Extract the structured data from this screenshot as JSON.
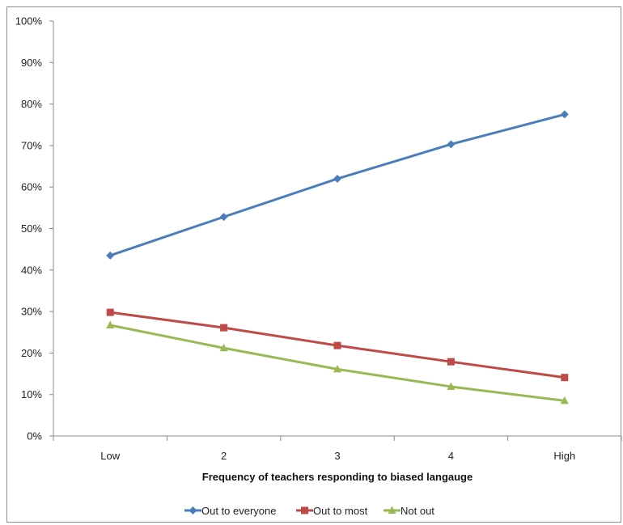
{
  "chart_data": {
    "type": "line",
    "title": "",
    "xlabel": "Frequency of teachers responding to biased langauge",
    "ylabel": "",
    "categories": [
      "Low",
      "2",
      "3",
      "4",
      "High"
    ],
    "ylim": [
      0,
      100
    ],
    "y_ticks": [
      "0%",
      "10%",
      "20%",
      "30%",
      "40%",
      "50%",
      "60%",
      "70%",
      "80%",
      "90%",
      "100%"
    ],
    "grid": false,
    "legend_position": "bottom",
    "series": [
      {
        "name": "Out to everyone",
        "values": [
          43.5,
          52.8,
          62.0,
          70.3,
          77.5
        ],
        "color": "#4a7ebb",
        "marker": "diamond"
      },
      {
        "name": "Out to most",
        "values": [
          29.8,
          26.1,
          21.8,
          17.9,
          14.1
        ],
        "color": "#be4b48",
        "marker": "square"
      },
      {
        "name": "Not out",
        "values": [
          26.7,
          21.2,
          16.1,
          11.9,
          8.5
        ],
        "color": "#98b954",
        "marker": "triangle"
      }
    ]
  }
}
